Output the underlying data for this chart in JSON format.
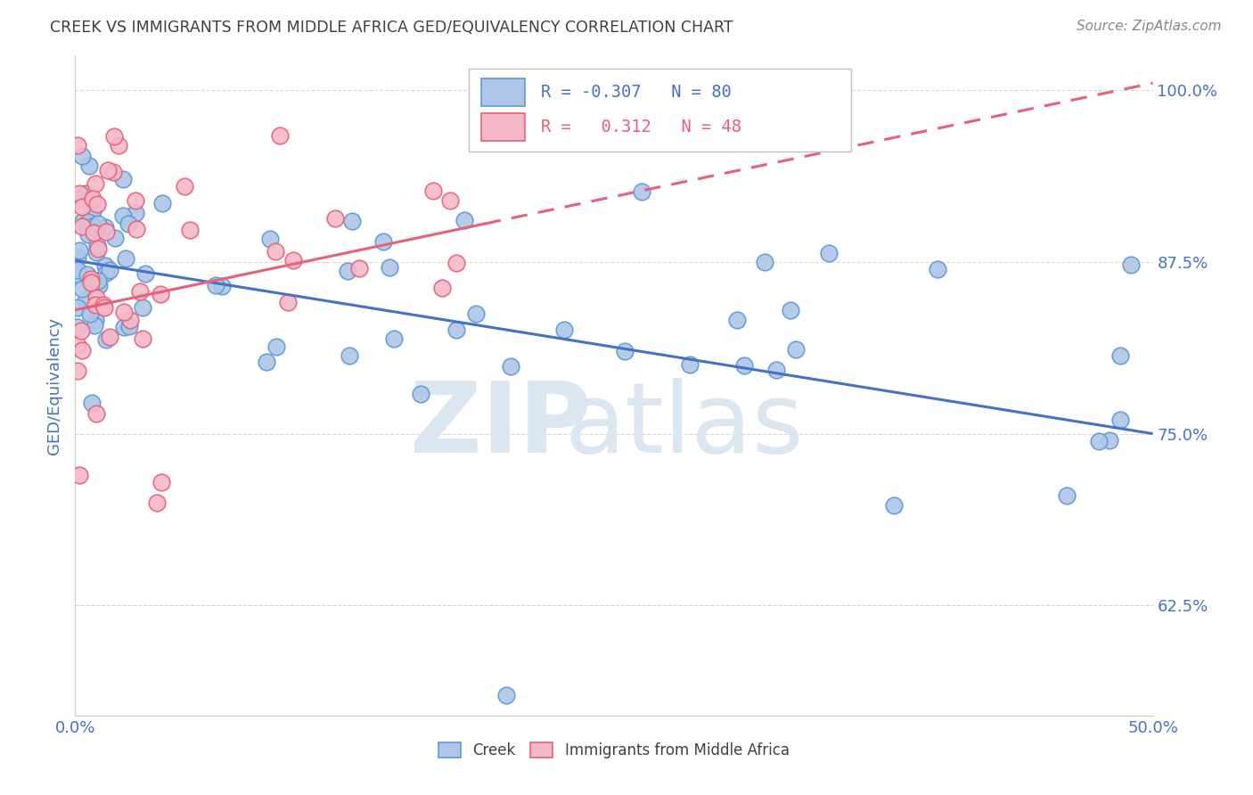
{
  "title": "CREEK VS IMMIGRANTS FROM MIDDLE AFRICA GED/EQUIVALENCY CORRELATION CHART",
  "source": "Source: ZipAtlas.com",
  "ylabel": "GED/Equivalency",
  "xmin": 0.0,
  "xmax": 0.5,
  "ymin": 0.545,
  "ymax": 1.025,
  "yticks": [
    0.625,
    0.75,
    0.875,
    1.0
  ],
  "ytick_labels": [
    "62.5%",
    "75.0%",
    "87.5%",
    "100.0%"
  ],
  "xticks": [
    0.0,
    0.1,
    0.2,
    0.3,
    0.4,
    0.5
  ],
  "xtick_labels": [
    "0.0%",
    "",
    "",
    "",
    "",
    "50.0%"
  ],
  "creek_color": "#aec6e8",
  "creek_edge_color": "#5b9bd5",
  "immigrant_color": "#f4b8c8",
  "immigrant_edge_color": "#e8607a",
  "creek_line_color": "#4472c4",
  "immigrant_line_color": "#e8607a",
  "creek_R": -0.307,
  "creek_N": 80,
  "immigrant_R": 0.312,
  "immigrant_N": 48,
  "background_color": "#ffffff",
  "grid_color": "#d9d9d9",
  "title_color": "#404040",
  "axis_label_color": "#4472c4",
  "tick_label_color": "#4472c4",
  "watermark_color": "#dce6f1",
  "legend_R_color": "#4472c4",
  "legend_border_color": "#bfbfbf",
  "creek_line_y0": 0.876,
  "creek_line_y1": 0.75,
  "imm_line_y0": 0.84,
  "imm_line_y1": 1.005,
  "imm_line_x0": 0.0,
  "imm_line_x1": 0.5
}
